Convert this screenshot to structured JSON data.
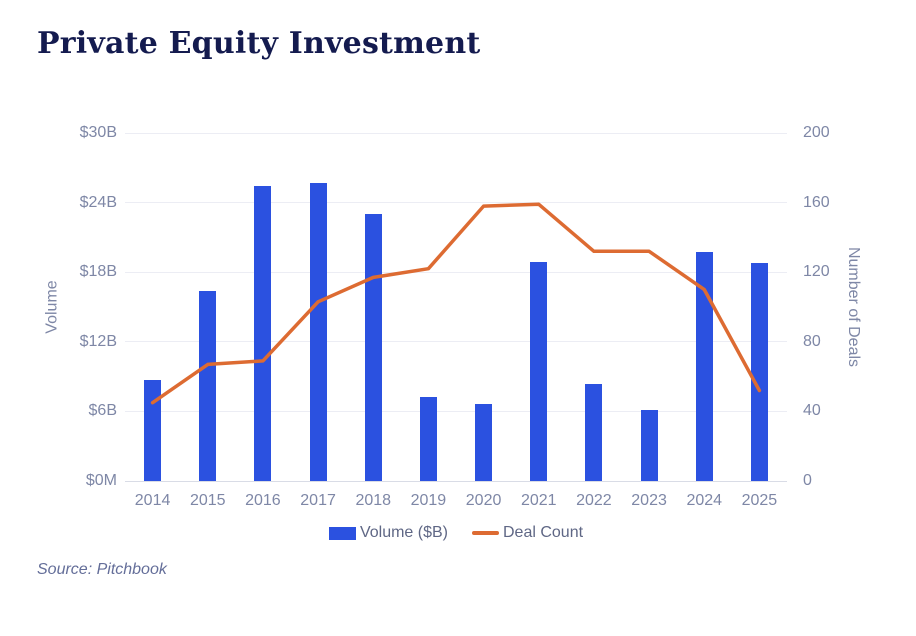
{
  "title": "Private Equity Investment",
  "source": "Source: Pitchbook",
  "colors": {
    "bar": "#2b51e0",
    "line": "#dd6b32",
    "title_text": "#141b4f",
    "axis_text": "#7e87a6",
    "legend_text": "#5f6785",
    "source_text": "#646e99",
    "grid": "#ecedf4",
    "axis_line": "#d9dce6"
  },
  "chart_data": {
    "type": "bar",
    "combo": "bar+line",
    "title": "Private Equity Investment",
    "categories": [
      "2014",
      "2015",
      "2016",
      "2017",
      "2018",
      "2019",
      "2020",
      "2021",
      "2022",
      "2023",
      "2024",
      "2025"
    ],
    "series": [
      {
        "name": "Volume ($B)",
        "type": "bar",
        "axis": "left",
        "values": [
          8.7,
          16.4,
          25.4,
          25.7,
          23.0,
          7.2,
          6.6,
          18.9,
          8.4,
          6.1,
          19.7,
          18.8
        ]
      },
      {
        "name": "Deal Count",
        "type": "line",
        "axis": "right",
        "values": [
          45,
          67,
          69,
          103,
          117,
          122,
          158,
          159,
          132,
          132,
          110,
          52
        ]
      }
    ],
    "left_axis": {
      "label": "Volume",
      "min": 0,
      "max": 30,
      "ticks": [
        "$0M",
        "$6B",
        "$12B",
        "$18B",
        "$24B",
        "$30B"
      ]
    },
    "right_axis": {
      "label": "Number of Deals",
      "min": 0,
      "max": 200,
      "ticks": [
        "0",
        "40",
        "80",
        "120",
        "160",
        "200"
      ]
    },
    "legend": [
      {
        "label": "Volume ($B)",
        "swatch": "bar"
      },
      {
        "label": "Deal Count",
        "swatch": "line"
      }
    ],
    "grid": true,
    "legend_position": "bottom"
  }
}
